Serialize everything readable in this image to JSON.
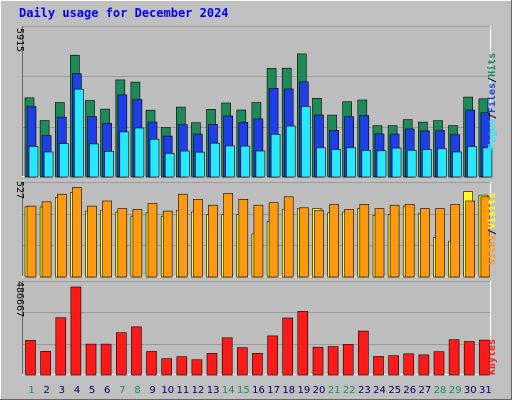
{
  "title": "Daily usage for December 2024",
  "colors": {
    "background": "#c0c0c0",
    "panel": "#bebebe",
    "grid": "#9a9a9a",
    "title": "#0000ff",
    "hits": "#1e8a58",
    "files": "#1e3ee6",
    "pages": "#26e8ff",
    "visits": "#ffff22",
    "sites": "#ff9a10",
    "kbytes": "#ff1a1a",
    "day_weekday": "#000066",
    "day_weekend": "#1e8a58"
  },
  "chart_data": [
    {
      "type": "bar",
      "panel": "top",
      "ymax_label": "5915",
      "axis_label_parts": [
        "Pages",
        "/",
        "Files",
        "/",
        "Hits"
      ],
      "axis_label_colors": [
        "pages",
        "sep",
        "files",
        "sep",
        "hits"
      ],
      "ylim": [
        0,
        5915
      ],
      "categories": [
        "1",
        "2",
        "3",
        "4",
        "5",
        "6",
        "7",
        "8",
        "9",
        "10",
        "11",
        "12",
        "13",
        "14",
        "15",
        "16",
        "17",
        "18",
        "19",
        "20",
        "21",
        "22",
        "23",
        "24",
        "25",
        "26",
        "27",
        "28",
        "29",
        "30",
        "31"
      ],
      "series": [
        {
          "name": "Hits",
          "values": [
            3230,
            2305,
            3040,
            4970,
            3120,
            2770,
            3960,
            3870,
            2725,
            2020,
            2850,
            2215,
            2760,
            3020,
            2735,
            3040,
            4430,
            4440,
            5020,
            3210,
            2525,
            3070,
            3140,
            2095,
            2095,
            2340,
            2240,
            2300,
            2100,
            3260,
            3190
          ]
        },
        {
          "name": "Files",
          "values": [
            2880,
            1690,
            2440,
            4220,
            2470,
            2190,
            3350,
            3160,
            2240,
            1670,
            2140,
            1750,
            2150,
            2490,
            2230,
            2370,
            3620,
            3590,
            3880,
            2530,
            1900,
            2460,
            2510,
            1760,
            1750,
            1960,
            1880,
            1900,
            1730,
            2730,
            2620
          ]
        },
        {
          "name": "Pages",
          "values": [
            1240,
            1020,
            1360,
            3580,
            1350,
            1050,
            1840,
            2000,
            1540,
            960,
            1060,
            1010,
            1380,
            1270,
            1260,
            1060,
            1740,
            2080,
            2870,
            1190,
            1120,
            1190,
            1080,
            1070,
            1180,
            1090,
            1120,
            1150,
            1020,
            1240,
            1190
          ]
        }
      ]
    },
    {
      "type": "bar",
      "panel": "middle",
      "ymax_label": "527",
      "axis_label_parts": [
        "Sites",
        "/",
        "Visits"
      ],
      "axis_label_colors": [
        "sites",
        "sep",
        "visits"
      ],
      "ylim": [
        0,
        527
      ],
      "categories": [
        "1",
        "2",
        "3",
        "4",
        "5",
        "6",
        "7",
        "8",
        "9",
        "10",
        "11",
        "12",
        "13",
        "14",
        "15",
        "16",
        "17",
        "18",
        "19",
        "20",
        "21",
        "22",
        "23",
        "24",
        "25",
        "26",
        "27",
        "28",
        "29",
        "30",
        "31"
      ],
      "series": [
        {
          "name": "Visits",
          "values": [
            415,
            415,
            470,
            500,
            390,
            395,
            385,
            360,
            380,
            360,
            395,
            385,
            370,
            370,
            370,
            255,
            330,
            400,
            405,
            405,
            380,
            385,
            405,
            365,
            370,
            420,
            375,
            235,
            210,
            505,
            485
          ]
        },
        {
          "name": "Sites",
          "values": [
            420,
            445,
            490,
            530,
            420,
            450,
            405,
            400,
            435,
            390,
            490,
            460,
            425,
            495,
            460,
            425,
            440,
            475,
            410,
            395,
            430,
            400,
            430,
            405,
            425,
            430,
            405,
            405,
            430,
            450,
            475
          ]
        }
      ]
    },
    {
      "type": "bar",
      "panel": "bottom",
      "ymax_label": "486667",
      "axis_label_parts": [
        "KBytes"
      ],
      "axis_label_colors": [
        "kbytes"
      ],
      "ylim": [
        0,
        486667
      ],
      "categories": [
        "1",
        "2",
        "3",
        "4",
        "5",
        "6",
        "7",
        "8",
        "9",
        "10",
        "11",
        "12",
        "13",
        "14",
        "15",
        "16",
        "17",
        "18",
        "19",
        "20",
        "21",
        "22",
        "23",
        "24",
        "25",
        "26",
        "27",
        "28",
        "29",
        "30",
        "31"
      ],
      "series": [
        {
          "name": "KBytes",
          "values": [
            192000,
            131000,
            317000,
            486667,
            171000,
            171000,
            234000,
            266000,
            130000,
            90000,
            101000,
            84000,
            120000,
            206000,
            151000,
            120000,
            216000,
            315000,
            352000,
            154000,
            157000,
            169000,
            243000,
            103000,
            107000,
            117000,
            111000,
            129000,
            195000,
            185000,
            193000
          ]
        }
      ]
    }
  ],
  "x_axis": {
    "labels": [
      "1",
      "2",
      "3",
      "4",
      "5",
      "6",
      "7",
      "8",
      "9",
      "10",
      "11",
      "12",
      "13",
      "14",
      "15",
      "16",
      "17",
      "18",
      "19",
      "20",
      "21",
      "22",
      "23",
      "24",
      "25",
      "26",
      "27",
      "28",
      "29",
      "30",
      "31"
    ],
    "weekend": [
      1,
      7,
      8,
      14,
      15,
      21,
      22,
      28,
      29
    ]
  }
}
